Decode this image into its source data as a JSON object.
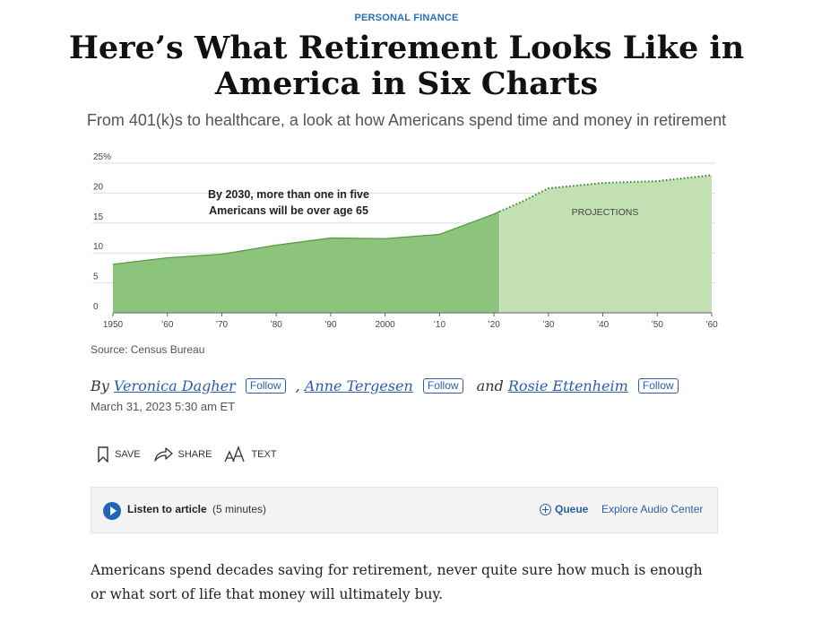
{
  "article": {
    "kicker": "PERSONAL FINANCE",
    "headline": "Here’s What Retirement Looks Like in America in Six Charts",
    "dek": "From 401(k)s to healthcare, a look at how Americans spend time and money in retirement",
    "source": "Source: Census Bureau",
    "byline": {
      "by": "By",
      "authors": [
        "Veronica Dagher",
        "Anne Tergesen",
        "Rosie Ettenheim"
      ],
      "separator": ",",
      "and": "and",
      "follow_label": "Follow"
    },
    "date": "March 31, 2023 5:30 am ET",
    "body": "Americans spend decades saving for retirement, never quite sure how much is enough or what sort of life that money will ultimately buy."
  },
  "toolbar": {
    "save_label": "SAVE",
    "share_label": "SHARE",
    "text_label": "TEXT",
    "save_icon": "bookmark-icon",
    "share_icon": "share-arrow-icon",
    "text_icon": "text-size-icon"
  },
  "audio": {
    "listen_label": "Listen to article",
    "duration": "(5 minutes)",
    "queue_label": "Queue",
    "explore_label": "Explore Audio Center",
    "play_icon": "play-icon",
    "accent": "#1f66b8"
  },
  "chart_data": {
    "type": "area",
    "x": [
      1950,
      1960,
      1970,
      1980,
      1990,
      2000,
      2010,
      2020,
      2025,
      2030,
      2040,
      2050,
      2060
    ],
    "series": [
      {
        "values": [
          8.1,
          9.2,
          9.8,
          11.3,
          12.5,
          12.4,
          13.1,
          16.5,
          18.5,
          20.8,
          21.7,
          22.0,
          23.0
        ]
      }
    ],
    "projection_start": 2021,
    "xtick_labels": [
      "1950",
      "’60",
      "’70",
      "’80",
      "’90",
      "2000",
      "’10",
      "’20",
      "’30",
      "’40",
      "’50",
      "’60"
    ],
    "ytick_values": [
      0,
      5,
      10,
      15,
      20,
      25
    ],
    "ytick_labels": [
      "0",
      "5",
      "10",
      "15",
      "20",
      "25%"
    ],
    "ylim": [
      0,
      25
    ],
    "xlim": [
      1950,
      2060
    ],
    "annotation": [
      "By 2030, more than one in five",
      "Americans will be over age 65"
    ],
    "projection_label": "PROJECTIONS",
    "colors": {
      "actual": "#8cc47b",
      "projection": "#c2e0b2",
      "line": "#4d9a3e",
      "grid": "#dddddd"
    },
    "grid": true
  }
}
